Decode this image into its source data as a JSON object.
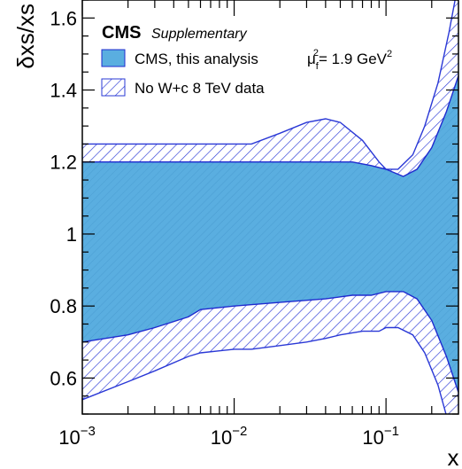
{
  "chart_data": {
    "type": "area",
    "header": {
      "brand": "CMS",
      "tag": "Supplementary"
    },
    "ylabel": "δxs/xs",
    "xlabel": "x",
    "scale_info": {
      "mu": "μ",
      "sub": "f",
      "sup": "2",
      "value": "= 1.9 GeV",
      "unit_sup": "2"
    },
    "x_scale": "log",
    "xlim": [
      0.001,
      0.3
    ],
    "ylim": [
      0.5,
      1.65
    ],
    "grid": false,
    "legend_position": "top-left",
    "x_ticks": [
      {
        "value": 0.001,
        "base": "10",
        "exp": "−3"
      },
      {
        "value": 0.01,
        "base": "10",
        "exp": "−2"
      },
      {
        "value": 0.1,
        "base": "10",
        "exp": "−1"
      }
    ],
    "y_ticks": [
      {
        "value": 0.6,
        "label": "0.6"
      },
      {
        "value": 0.8,
        "label": "0.8"
      },
      {
        "value": 1.0,
        "label": "1"
      },
      {
        "value": 1.2,
        "label": "1.2"
      },
      {
        "value": 1.4,
        "label": "1.4"
      },
      {
        "value": 1.6,
        "label": "1.6"
      }
    ],
    "colors": {
      "fill": "#5aaee0",
      "edge": "#1f2bcf",
      "hatch": "#2a38d6"
    },
    "series": [
      {
        "name": "CMS, this analysis",
        "style": "filled",
        "x": [
          0.001,
          0.002,
          0.003,
          0.005,
          0.006,
          0.01,
          0.02,
          0.04,
          0.06,
          0.08,
          0.1,
          0.13,
          0.16,
          0.2,
          0.25,
          0.3
        ],
        "upper": [
          1.2,
          1.2,
          1.2,
          1.2,
          1.2,
          1.2,
          1.2,
          1.2,
          1.2,
          1.19,
          1.18,
          1.16,
          1.18,
          1.24,
          1.34,
          1.44
        ],
        "lower": [
          0.7,
          0.72,
          0.74,
          0.77,
          0.79,
          0.8,
          0.81,
          0.82,
          0.83,
          0.83,
          0.84,
          0.84,
          0.82,
          0.76,
          0.66,
          0.56
        ]
      },
      {
        "name": "No W+c 8 TeV data",
        "style": "hatched",
        "x": [
          0.001,
          0.002,
          0.003,
          0.005,
          0.006,
          0.01,
          0.013,
          0.02,
          0.03,
          0.04,
          0.05,
          0.07,
          0.09,
          0.1,
          0.12,
          0.15,
          0.18,
          0.22,
          0.26,
          0.3
        ],
        "upper": [
          1.25,
          1.25,
          1.25,
          1.25,
          1.25,
          1.25,
          1.25,
          1.28,
          1.31,
          1.32,
          1.31,
          1.26,
          1.2,
          1.18,
          1.18,
          1.22,
          1.3,
          1.42,
          1.56,
          1.7
        ],
        "lower": [
          0.54,
          0.59,
          0.62,
          0.66,
          0.67,
          0.68,
          0.68,
          0.69,
          0.7,
          0.71,
          0.72,
          0.73,
          0.73,
          0.74,
          0.74,
          0.72,
          0.67,
          0.58,
          0.47,
          0.4
        ]
      }
    ]
  }
}
